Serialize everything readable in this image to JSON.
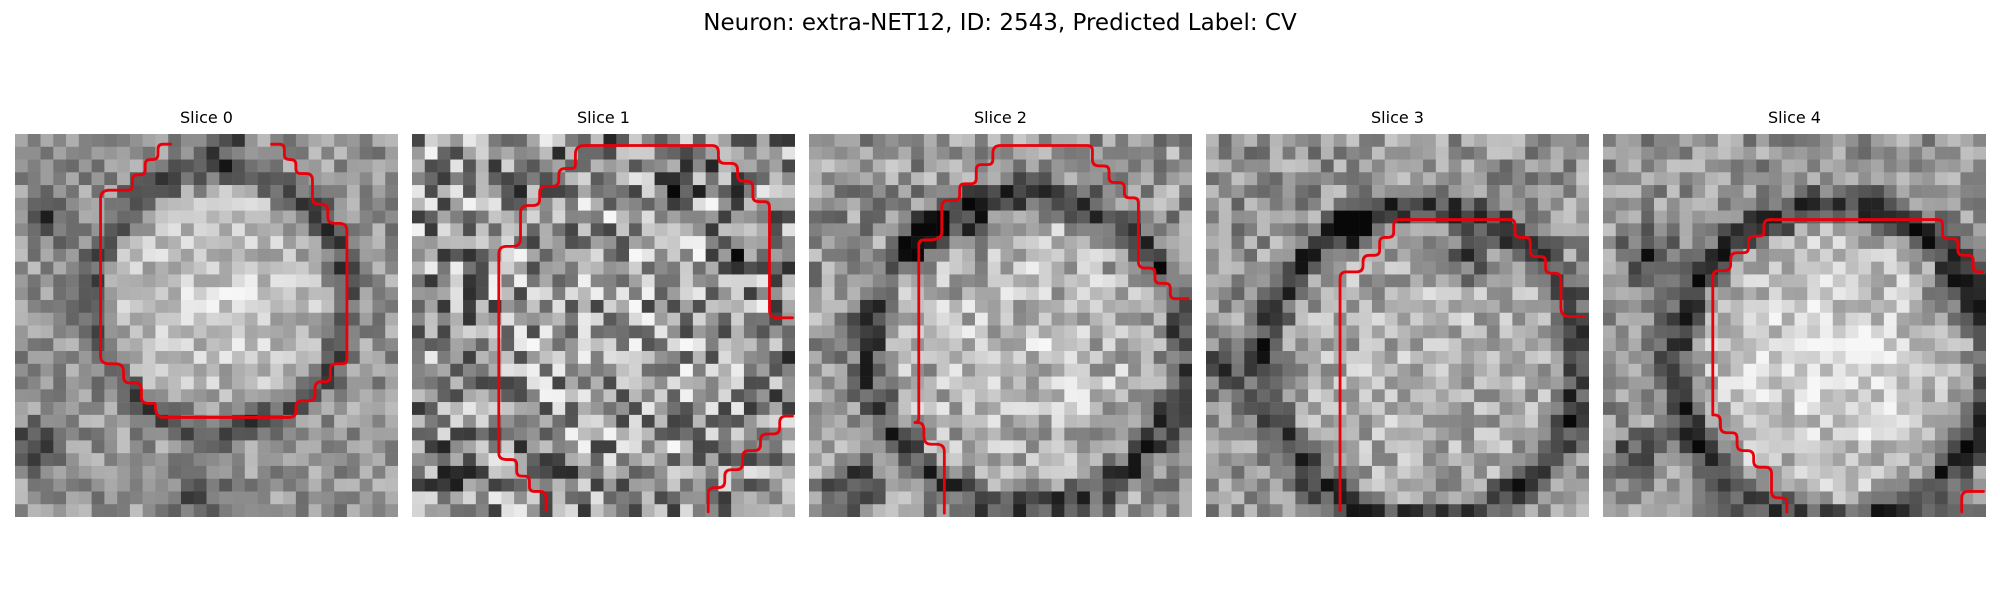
{
  "figure": {
    "title": "Neuron: extra-NET12, ID: 2543, Predicted Label: CV"
  },
  "panels": [
    {
      "title": "Slice 0",
      "contour_color": "#e8000b"
    },
    {
      "title": "Slice 1",
      "contour_color": "#e8000b"
    },
    {
      "title": "Slice 2",
      "contour_color": "#e8000b"
    },
    {
      "title": "Slice 3",
      "contour_color": "#e8000b"
    },
    {
      "title": "Slice 4",
      "contour_color": "#e8000b"
    }
  ]
}
